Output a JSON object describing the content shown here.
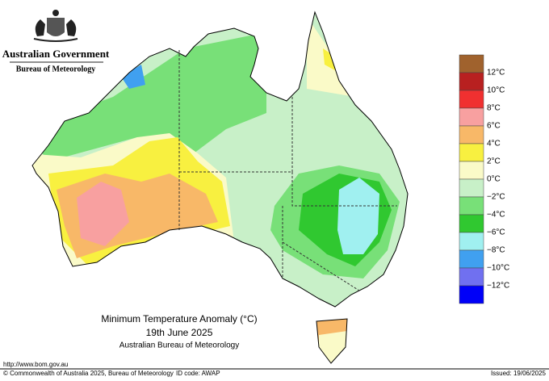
{
  "header": {
    "government": "Australian Government",
    "agency": "Bureau of Meteorology"
  },
  "legend": {
    "colors": [
      "#a0622d",
      "#b82020",
      "#f03030",
      "#f8a0a0",
      "#f8b868",
      "#f8f040",
      "#fafac8",
      "#c8f0c8",
      "#78e078",
      "#30c830",
      "#a0f0f0",
      "#40a0f0",
      "#7070f0",
      "#0000f8"
    ],
    "labels": [
      "12°C",
      "10°C",
      "8°C",
      "6°C",
      "4°C",
      "2°C",
      "0°C",
      "−2°C",
      "−4°C",
      "−6°C",
      "−8°C",
      "−10°C",
      "−12°C"
    ]
  },
  "title": "Minimum Temperature Anomaly (°C)",
  "date": "19th June 2025",
  "source": "Australian Bureau of Meteorology",
  "url": "http://www.bom.gov.au",
  "footer": {
    "copyright": "© Commonwealth of Australia 2025, Bureau of Meteorology",
    "id_code": "ID code: AWAP",
    "issued": "Issued: 19/06/2025"
  }
}
